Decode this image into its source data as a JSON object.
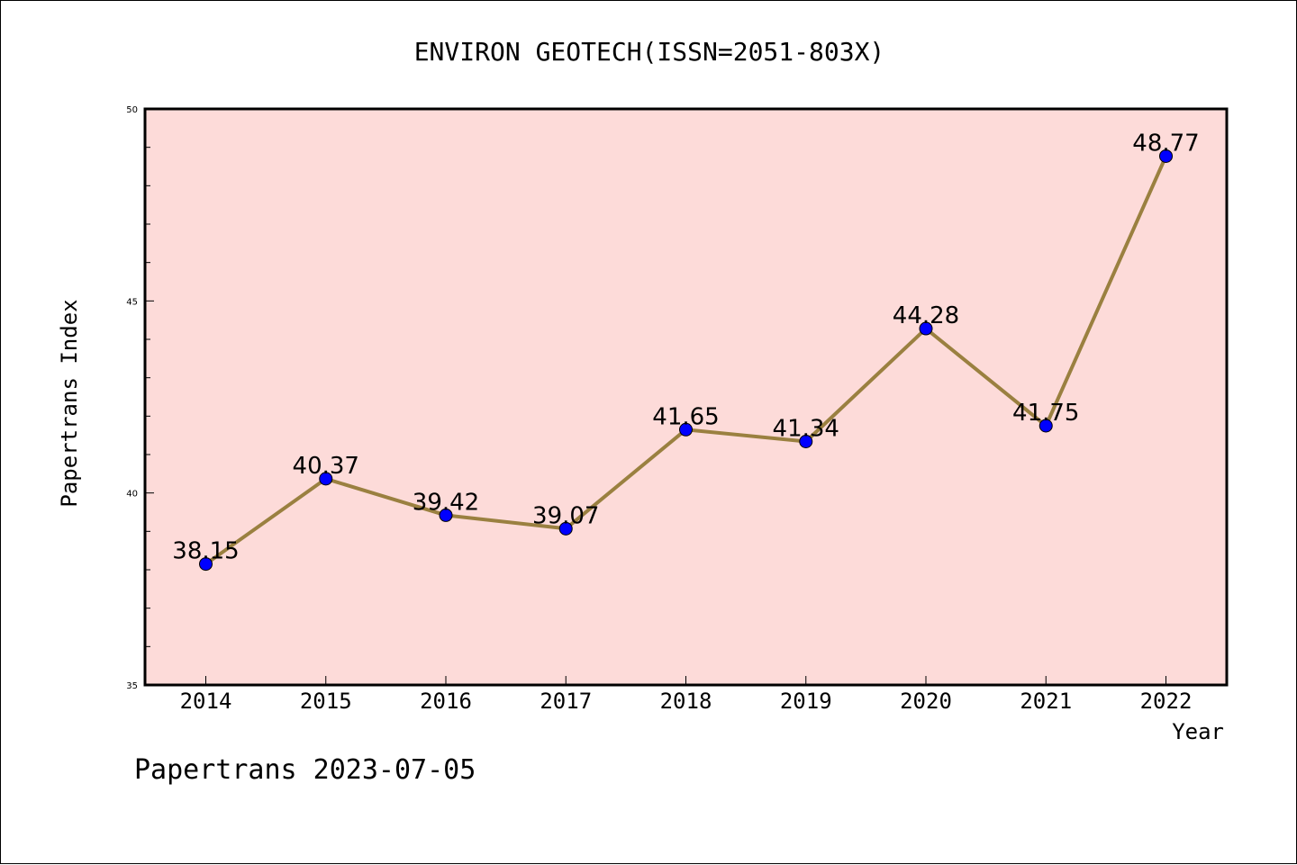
{
  "chart_data": {
    "type": "line",
    "title": "ENVIRON GEOTECH(ISSN=2051-803X)",
    "xlabel": "Year",
    "ylabel": "Papertrans Index",
    "footer": "Papertrans 2023-07-05",
    "x": [
      "2014",
      "2015",
      "2016",
      "2017",
      "2018",
      "2019",
      "2020",
      "2021",
      "2022"
    ],
    "values": [
      38.15,
      40.37,
      39.42,
      39.07,
      41.65,
      41.34,
      44.28,
      41.75,
      48.77
    ],
    "value_labels": [
      "38.15",
      "40.37",
      "39.42",
      "39.07",
      "41.65",
      "41.34",
      "44.28",
      "41.75",
      "48.77"
    ],
    "ylim": [
      35,
      50
    ],
    "yticks": [
      "35",
      "40",
      "45",
      "50"
    ],
    "grid": false,
    "colors": {
      "plot_background": "#fddbd9",
      "line": "#9a8040",
      "marker": "#0000ff"
    }
  }
}
